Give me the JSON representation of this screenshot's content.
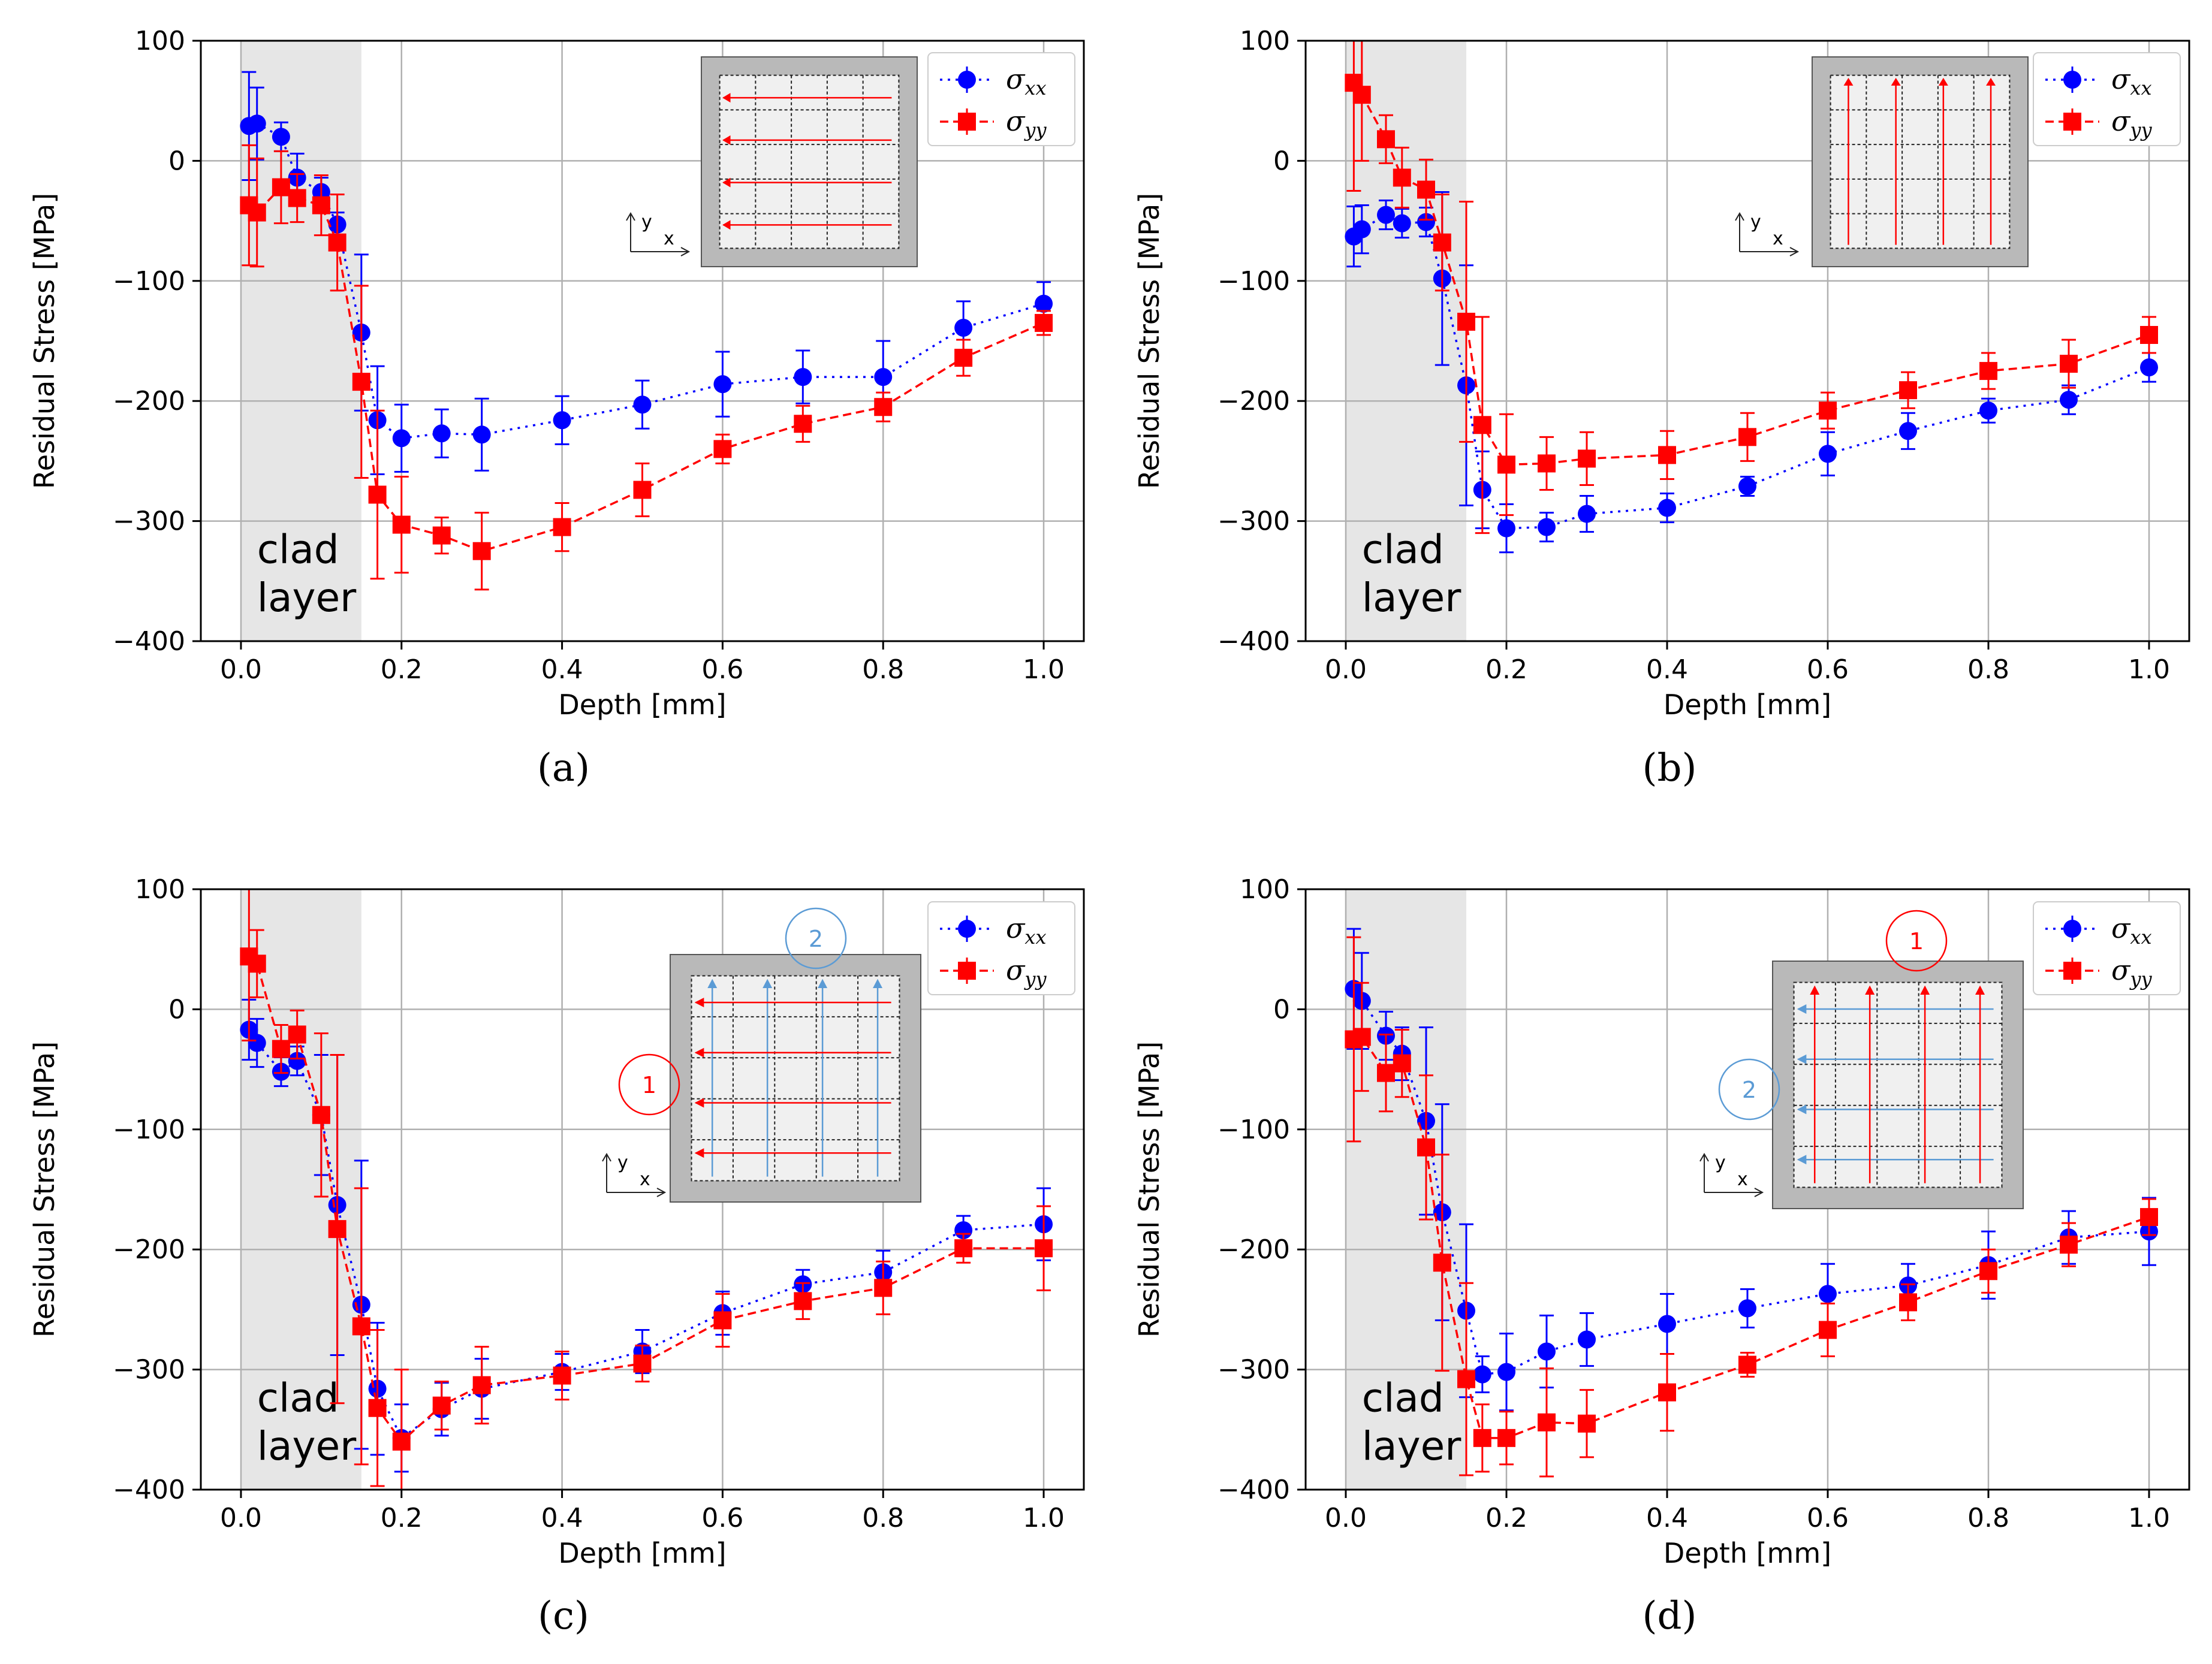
{
  "figure": {
    "panel_labels": [
      "(a)",
      "(b)",
      "(c)",
      "(d)"
    ]
  },
  "colors": {
    "sxx": "#0000ff",
    "syy": "#ff0000",
    "clad_fill": "#e6e6e6",
    "grid": "#b0b0b0",
    "pass2_blue": "#5b9bd5"
  },
  "chart_data": [
    {
      "type": "line",
      "xlabel": "Depth [mm]",
      "ylabel": "Residual Stress [MPa]",
      "xlim": [
        -0.05,
        1.05
      ],
      "ylim": [
        -400,
        100
      ],
      "xticks": [
        "0.0",
        "0.2",
        "0.4",
        "0.6",
        "0.8",
        "1.0"
      ],
      "yticks": [
        "100",
        "0",
        "−100",
        "−200",
        "−300",
        "−400"
      ],
      "grid": true,
      "legend": "top-right",
      "clad_region": [
        0,
        0.15
      ],
      "clad_label": [
        "clad",
        "layer"
      ],
      "inset": {
        "type": "horizontal-passes",
        "axis_x": "x",
        "axis_y": "y"
      },
      "x": [
        0.01,
        0.02,
        0.05,
        0.07,
        0.1,
        0.12,
        0.15,
        0.17,
        0.2,
        0.25,
        0.3,
        0.4,
        0.5,
        0.6,
        0.7,
        0.8,
        0.9,
        1.0
      ],
      "series": [
        {
          "name": "σxx",
          "name_main": "σ",
          "name_sub": "xx",
          "style": "dotted",
          "marker": "circle",
          "values": [
            29,
            31,
            20,
            -14,
            -26,
            -53,
            -143,
            -216,
            -231,
            -227,
            -228,
            -216,
            -203,
            -186,
            -180,
            -180,
            -139,
            -119
          ],
          "err": [
            45,
            30,
            12,
            20,
            12,
            10,
            65,
            45,
            28,
            20,
            30,
            20,
            20,
            27,
            22,
            30,
            22,
            18
          ]
        },
        {
          "name": "σyy",
          "name_main": "σ",
          "name_sub": "yy",
          "style": "dashed",
          "marker": "square",
          "values": [
            -37,
            -43,
            -22,
            -31,
            -37,
            -68,
            -184,
            -278,
            -303,
            -312,
            -325,
            -305,
            -274,
            -240,
            -219,
            -205,
            -164,
            -135
          ],
          "err": [
            50,
            45,
            30,
            20,
            25,
            40,
            80,
            70,
            40,
            15,
            32,
            20,
            22,
            12,
            15,
            12,
            15,
            10
          ]
        }
      ]
    },
    {
      "type": "line",
      "xlabel": "Depth [mm]",
      "ylabel": "Residual Stress [MPa]",
      "xlim": [
        -0.05,
        1.05
      ],
      "ylim": [
        -400,
        100
      ],
      "xticks": [
        "0.0",
        "0.2",
        "0.4",
        "0.6",
        "0.8",
        "1.0"
      ],
      "yticks": [
        "100",
        "0",
        "−100",
        "−200",
        "−300",
        "−400"
      ],
      "grid": true,
      "legend": "top-right",
      "clad_region": [
        0,
        0.15
      ],
      "clad_label": [
        "clad",
        "layer"
      ],
      "inset": {
        "type": "vertical-passes",
        "axis_x": "x",
        "axis_y": "y"
      },
      "x": [
        0.01,
        0.02,
        0.05,
        0.07,
        0.1,
        0.12,
        0.15,
        0.17,
        0.2,
        0.25,
        0.3,
        0.4,
        0.5,
        0.6,
        0.7,
        0.8,
        0.9,
        1.0
      ],
      "series": [
        {
          "name": "σxx",
          "name_main": "σ",
          "name_sub": "xx",
          "style": "dotted",
          "marker": "circle",
          "values": [
            -63,
            -57,
            -45,
            -52,
            -51,
            -98,
            -187,
            -274,
            -306,
            -305,
            -294,
            -289,
            -271,
            -244,
            -225,
            -208,
            -199,
            -172
          ],
          "err": [
            25,
            20,
            12,
            12,
            12,
            72,
            100,
            32,
            20,
            12,
            15,
            12,
            8,
            18,
            15,
            10,
            12,
            12
          ]
        },
        {
          "name": "σyy",
          "name_main": "σ",
          "name_sub": "yy",
          "style": "dashed",
          "marker": "square",
          "values": [
            65,
            55,
            18,
            -14,
            -24,
            -68,
            -134,
            -220,
            -253,
            -252,
            -248,
            -245,
            -230,
            -208,
            -191,
            -175,
            -169,
            -145
          ],
          "err": [
            90,
            55,
            20,
            25,
            25,
            40,
            100,
            90,
            42,
            22,
            22,
            20,
            20,
            15,
            15,
            15,
            20,
            15
          ]
        }
      ]
    },
    {
      "type": "line",
      "xlabel": "Depth [mm]",
      "ylabel": "Residual Stress [MPa]",
      "xlim": [
        -0.05,
        1.05
      ],
      "ylim": [
        -400,
        100
      ],
      "xticks": [
        "0.0",
        "0.2",
        "0.4",
        "0.6",
        "0.8",
        "1.0"
      ],
      "yticks": [
        "100",
        "0",
        "−100",
        "−200",
        "−300",
        "−400"
      ],
      "grid": true,
      "legend": "top-right",
      "clad_region": [
        0,
        0.15
      ],
      "clad_label": [
        "clad",
        "layer"
      ],
      "inset": {
        "type": "h-then-v",
        "circle_red": "1",
        "circle_blue": "2",
        "axis_x": "x",
        "axis_y": "y"
      },
      "x": [
        0.01,
        0.02,
        0.05,
        0.07,
        0.1,
        0.12,
        0.15,
        0.17,
        0.2,
        0.25,
        0.3,
        0.4,
        0.5,
        0.6,
        0.7,
        0.8,
        0.9,
        1.0
      ],
      "series": [
        {
          "name": "σxx",
          "name_main": "σ",
          "name_sub": "xx",
          "style": "dotted",
          "marker": "circle",
          "values": [
            -17,
            -28,
            -52,
            -43,
            -88,
            -163,
            -246,
            -316,
            -357,
            -333,
            -316,
            -302,
            -285,
            -253,
            -229,
            -219,
            -184,
            -179
          ],
          "err": [
            25,
            20,
            12,
            12,
            50,
            125,
            120,
            55,
            28,
            22,
            25,
            15,
            18,
            18,
            12,
            18,
            12,
            30
          ]
        },
        {
          "name": "σyy",
          "name_main": "σ",
          "name_sub": "yy",
          "style": "dashed",
          "marker": "square",
          "values": [
            44,
            38,
            -33,
            -21,
            -88,
            -183,
            -264,
            -332,
            -360,
            -330,
            -313,
            -305,
            -295,
            -259,
            -243,
            -232,
            -199,
            -199
          ],
          "err": [
            70,
            28,
            20,
            20,
            68,
            145,
            115,
            65,
            60,
            20,
            32,
            20,
            15,
            22,
            15,
            22,
            12,
            35
          ]
        }
      ]
    },
    {
      "type": "line",
      "xlabel": "Depth [mm]",
      "ylabel": "Residual Stress [MPa]",
      "xlim": [
        -0.05,
        1.05
      ],
      "ylim": [
        -400,
        100
      ],
      "xticks": [
        "0.0",
        "0.2",
        "0.4",
        "0.6",
        "0.8",
        "1.0"
      ],
      "yticks": [
        "100",
        "0",
        "−100",
        "−200",
        "−300",
        "−400"
      ],
      "grid": true,
      "legend": "top-right",
      "clad_region": [
        0,
        0.15
      ],
      "clad_label": [
        "clad",
        "layer"
      ],
      "inset": {
        "type": "v-then-h",
        "circle_red": "1",
        "circle_blue": "2",
        "axis_x": "x",
        "axis_y": "y"
      },
      "x": [
        0.01,
        0.02,
        0.05,
        0.07,
        0.1,
        0.12,
        0.15,
        0.17,
        0.2,
        0.25,
        0.3,
        0.4,
        0.5,
        0.6,
        0.7,
        0.8,
        0.9,
        1.0
      ],
      "series": [
        {
          "name": "σxx",
          "name_main": "σ",
          "name_sub": "xx",
          "style": "dotted",
          "marker": "circle",
          "values": [
            17,
            7,
            -22,
            -37,
            -93,
            -169,
            -251,
            -304,
            -302,
            -285,
            -275,
            -262,
            -249,
            -237,
            -230,
            -213,
            -190,
            -185
          ],
          "err": [
            50,
            40,
            20,
            22,
            78,
            90,
            72,
            15,
            32,
            30,
            22,
            25,
            16,
            25,
            18,
            28,
            22,
            28
          ]
        },
        {
          "name": "σyy",
          "name_main": "σ",
          "name_sub": "yy",
          "style": "dashed",
          "marker": "square",
          "values": [
            -25,
            -23,
            -53,
            -45,
            -115,
            -211,
            -308,
            -357,
            -357,
            -344,
            -345,
            -319,
            -296,
            -267,
            -244,
            -218,
            -196,
            -173
          ],
          "err": [
            85,
            45,
            32,
            28,
            60,
            90,
            80,
            28,
            22,
            45,
            28,
            32,
            10,
            22,
            15,
            18,
            18,
            15
          ]
        }
      ]
    }
  ]
}
